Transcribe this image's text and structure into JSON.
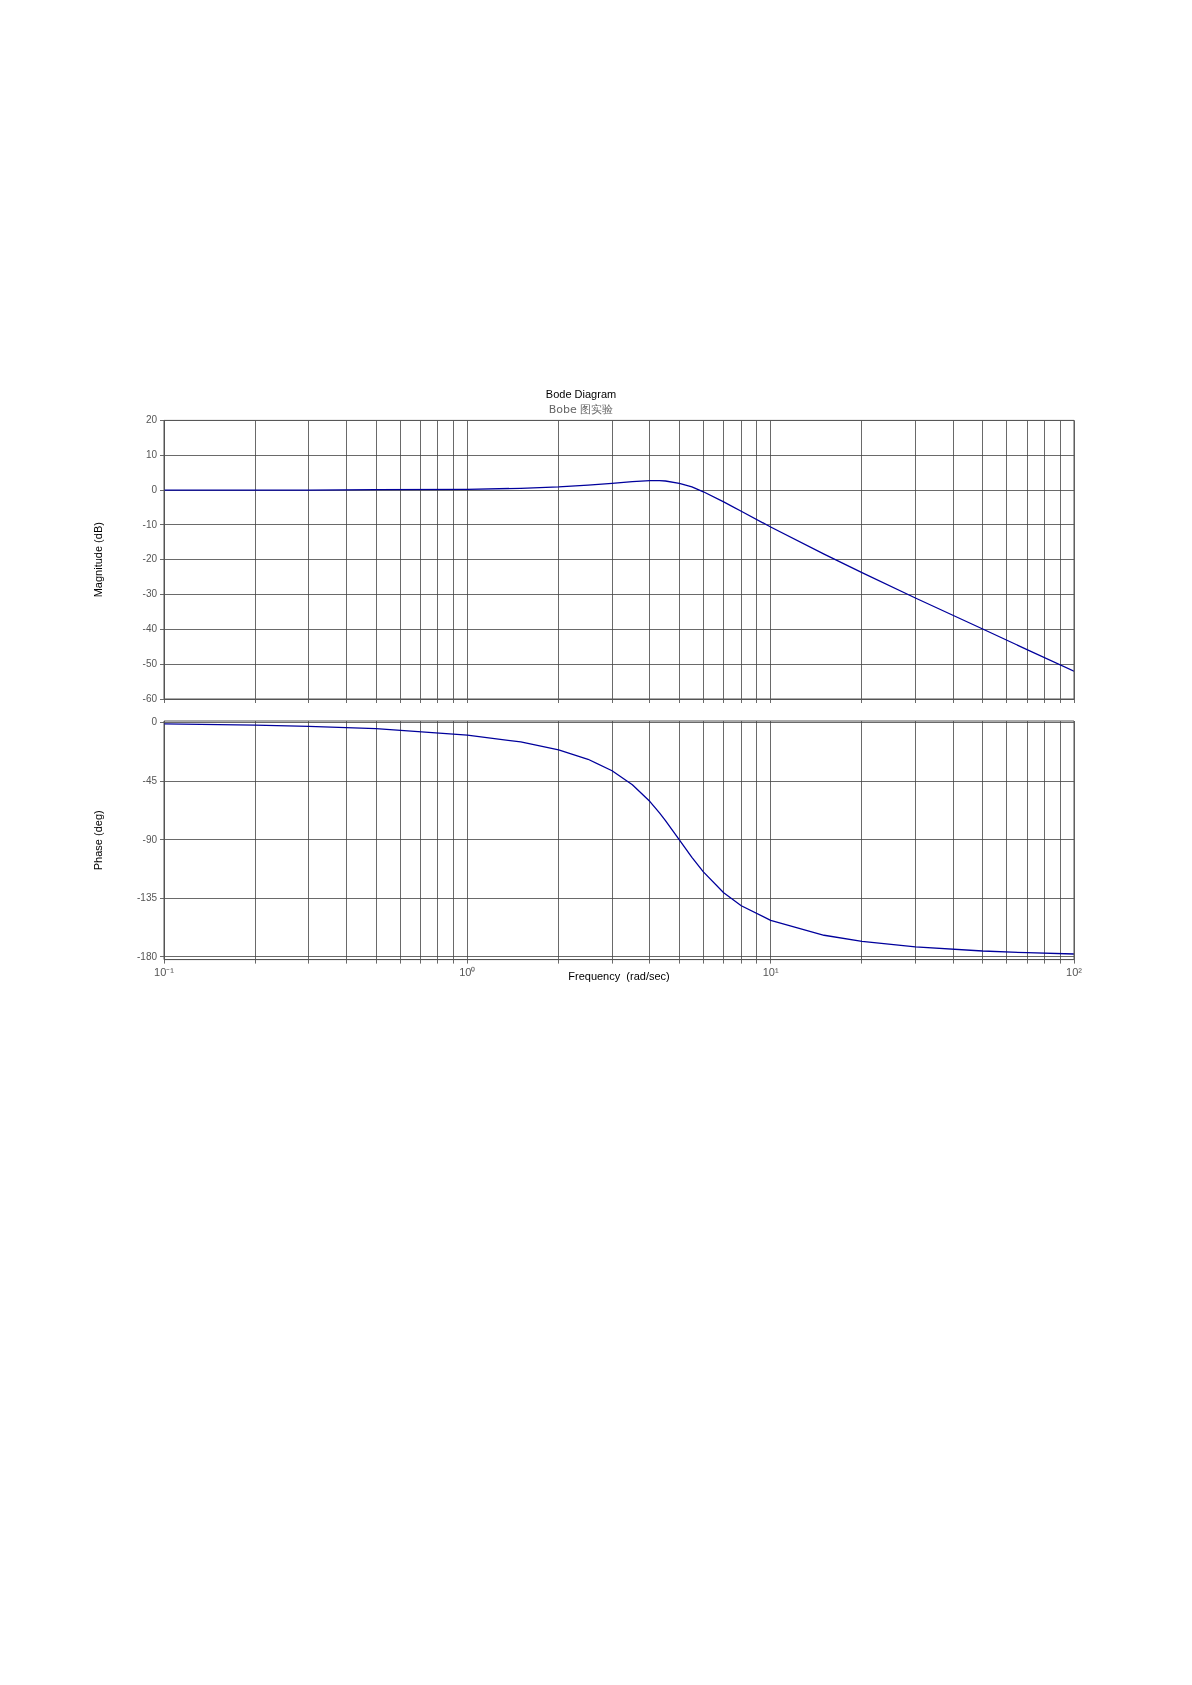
{
  "chart_data": [
    {
      "type": "line",
      "title": "Bode Diagram",
      "subtitle": "Bobe 图实验",
      "ylabel": "Magnitude (dB)",
      "x": [
        0.1,
        0.2,
        0.3,
        0.5,
        1,
        1.5,
        2,
        2.5,
        3,
        3.5,
        4,
        4.3,
        4.5,
        5,
        5.5,
        6,
        7,
        8,
        10,
        15,
        20,
        30,
        50,
        70,
        100
      ],
      "values": [
        0,
        0,
        0,
        0.1,
        0.2,
        0.5,
        0.9,
        1.4,
        1.9,
        2.4,
        2.7,
        2.7,
        2.6,
        1.9,
        0.9,
        -0.5,
        -3.4,
        -6.1,
        -10.6,
        -18.4,
        -23.7,
        -31.0,
        -39.9,
        -45.8,
        -52.0
      ],
      "color": "#00009c",
      "log": "x",
      "grid": true,
      "tick_labels": "y",
      "line_style": "solid",
      "xlim": [
        0.1,
        100
      ],
      "xticks": [
        {
          "value": 0.1,
          "label": null
        },
        {
          "value": 0.2,
          "label": null
        },
        {
          "value": 0.3,
          "label": null
        },
        {
          "value": 0.4,
          "label": null
        },
        {
          "value": 0.5,
          "label": null
        },
        {
          "value": 0.6,
          "label": null
        },
        {
          "value": 0.7,
          "label": null
        },
        {
          "value": 0.8,
          "label": null
        },
        {
          "value": 0.9,
          "label": null
        },
        {
          "value": 1,
          "label": null
        },
        {
          "value": 2,
          "label": null
        },
        {
          "value": 3,
          "label": null
        },
        {
          "value": 4,
          "label": null
        },
        {
          "value": 5,
          "label": null
        },
        {
          "value": 6,
          "label": null
        },
        {
          "value": 7,
          "label": null
        },
        {
          "value": 8,
          "label": null
        },
        {
          "value": 9,
          "label": null
        },
        {
          "value": 10,
          "label": null
        },
        {
          "value": 20,
          "label": null
        },
        {
          "value": 30,
          "label": null
        },
        {
          "value": 40,
          "label": null
        },
        {
          "value": 50,
          "label": null
        },
        {
          "value": 60,
          "label": null
        },
        {
          "value": 70,
          "label": null
        },
        {
          "value": 80,
          "label": null
        },
        {
          "value": 90,
          "label": null
        },
        {
          "value": 100,
          "label": null
        }
      ],
      "ylim": [
        -60,
        20
      ],
      "yticks": [
        -60,
        -50,
        -40,
        -30,
        -20,
        -10,
        0,
        10,
        20
      ]
    },
    {
      "type": "line",
      "ylabel": "Phase (deg)",
      "xlabel": "Frequency  (rad/sec)",
      "x": [
        0.1,
        0.2,
        0.3,
        0.5,
        1,
        1.5,
        2,
        2.5,
        3,
        3.5,
        4,
        4.3,
        4.5,
        5,
        5.5,
        6,
        7,
        8,
        10,
        15,
        20,
        30,
        50,
        70,
        100
      ],
      "values": [
        -0.9,
        -1.8,
        -2.8,
        -4.6,
        -9.5,
        -14.8,
        -20.9,
        -28.1,
        -36.9,
        -47.7,
        -60.6,
        -69.3,
        -75.2,
        -90,
        -103.4,
        -114.6,
        -130.6,
        -140.6,
        -151.9,
        -163.3,
        -168.0,
        -172.2,
        -175.4,
        -176.7,
        -177.7
      ],
      "color": "#00009c",
      "log": "x",
      "grid": true,
      "line_style": "solid",
      "xlim": [
        0.1,
        100
      ],
      "xticks": [
        {
          "value": 0.1,
          "label": "10⁻¹"
        },
        {
          "value": 0.2,
          "label": null
        },
        {
          "value": 0.3,
          "label": null
        },
        {
          "value": 0.4,
          "label": null
        },
        {
          "value": 0.5,
          "label": null
        },
        {
          "value": 0.6,
          "label": null
        },
        {
          "value": 0.7,
          "label": null
        },
        {
          "value": 0.8,
          "label": null
        },
        {
          "value": 0.9,
          "label": null
        },
        {
          "value": 1,
          "label": "10⁰"
        },
        {
          "value": 2,
          "label": null
        },
        {
          "value": 3,
          "label": null
        },
        {
          "value": 4,
          "label": null
        },
        {
          "value": 5,
          "label": null
        },
        {
          "value": 6,
          "label": null
        },
        {
          "value": 7,
          "label": null
        },
        {
          "value": 8,
          "label": null
        },
        {
          "value": 9,
          "label": null
        },
        {
          "value": 10,
          "label": "10¹"
        },
        {
          "value": 20,
          "label": null
        },
        {
          "value": 30,
          "label": null
        },
        {
          "value": 40,
          "label": null
        },
        {
          "value": 50,
          "label": null
        },
        {
          "value": 60,
          "label": null
        },
        {
          "value": 70,
          "label": null
        },
        {
          "value": 80,
          "label": null
        },
        {
          "value": 90,
          "label": null
        },
        {
          "value": 100,
          "label": "10²"
        }
      ],
      "ylim": [
        -182,
        1.3
      ],
      "yticks": [
        -180,
        -135,
        -90,
        -45,
        0
      ]
    }
  ]
}
